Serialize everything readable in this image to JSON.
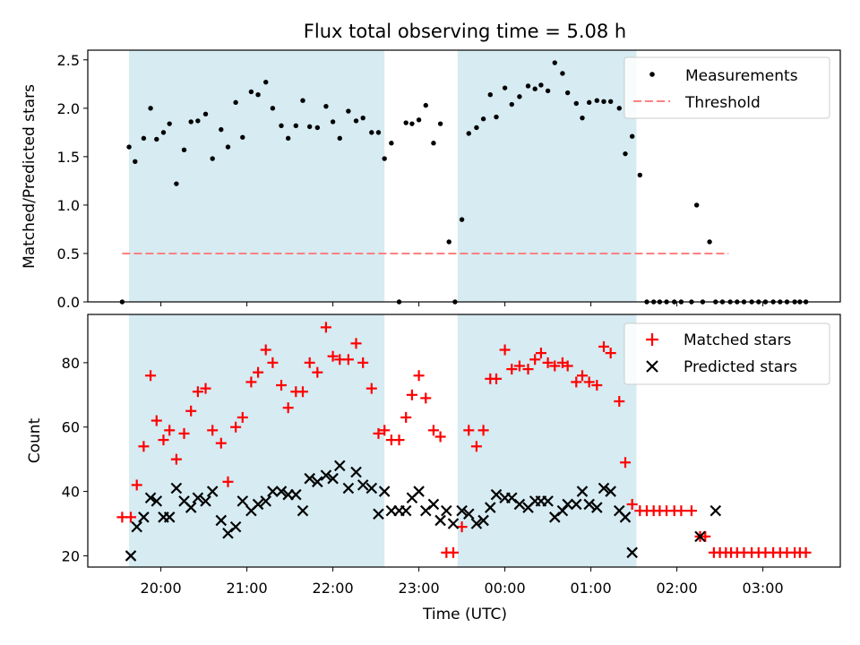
{
  "title": "Flux total observing time = 5.08 h",
  "colors": {
    "span": "#add8e6",
    "measurement": "#000000",
    "threshold": "#ff8080",
    "matched": "#ff0000",
    "predicted": "#000000"
  },
  "chart_data": [
    {
      "type": "scatter",
      "ylabel": "Matched/Predicted stars",
      "ylim": [
        0,
        2.6
      ],
      "yticks": [
        "0.0",
        "0.5",
        "1.0",
        "1.5",
        "2.0",
        "2.5"
      ],
      "legend": {
        "placement": "top-right",
        "entries": [
          "Measurements",
          "Threshold"
        ]
      },
      "threshold": 0.5,
      "threshold_x": [
        19.55,
        26.6
      ],
      "series": [
        {
          "name": "Measurements",
          "x": [
            19.55,
            19.63,
            19.7,
            19.8,
            19.88,
            19.95,
            20.03,
            20.1,
            20.18,
            20.27,
            20.35,
            20.43,
            20.52,
            20.6,
            20.7,
            20.78,
            20.87,
            20.95,
            21.05,
            21.13,
            21.22,
            21.3,
            21.4,
            21.48,
            21.57,
            21.65,
            21.73,
            21.82,
            21.92,
            22.0,
            22.08,
            22.18,
            22.27,
            22.35,
            22.45,
            22.53,
            22.6,
            22.68,
            22.77,
            22.85,
            22.92,
            23.0,
            23.08,
            23.17,
            23.25,
            23.35,
            23.42,
            23.5,
            23.58,
            23.67,
            23.75,
            23.83,
            23.9,
            24.0,
            24.08,
            24.17,
            24.27,
            24.35,
            24.42,
            24.5,
            24.58,
            24.67,
            24.73,
            24.83,
            24.9,
            24.98,
            25.07,
            25.15,
            25.23,
            25.33,
            25.4,
            25.48,
            25.57,
            25.65,
            25.73,
            25.8,
            25.88,
            25.97,
            26.05,
            26.17,
            26.23,
            26.3,
            26.38,
            26.45,
            26.53,
            26.62,
            26.7,
            26.78,
            26.87,
            26.95,
            27.03,
            27.12,
            27.2,
            27.28,
            27.37,
            27.43,
            27.5
          ],
          "y": [
            0.0,
            1.6,
            1.45,
            1.69,
            2.0,
            1.68,
            1.75,
            1.84,
            1.22,
            1.57,
            1.86,
            1.87,
            1.94,
            1.48,
            1.78,
            1.6,
            2.06,
            1.7,
            2.17,
            2.14,
            2.27,
            2.0,
            1.82,
            1.69,
            1.82,
            2.08,
            1.81,
            1.8,
            2.02,
            1.86,
            1.69,
            1.97,
            1.87,
            1.9,
            1.75,
            1.75,
            1.48,
            1.64,
            0.0,
            1.85,
            1.84,
            1.88,
            2.03,
            1.64,
            1.84,
            0.62,
            0.0,
            0.85,
            1.74,
            1.8,
            1.89,
            2.14,
            1.91,
            2.21,
            2.04,
            2.12,
            2.23,
            2.2,
            2.24,
            2.18,
            2.47,
            2.36,
            2.16,
            2.05,
            1.9,
            2.06,
            2.08,
            2.07,
            2.07,
            2.0,
            1.53,
            1.71,
            1.31,
            0.0,
            0.0,
            0.0,
            0.0,
            0.0,
            0.0,
            0.0,
            1.0,
            0.0,
            0.62,
            0.0,
            0.0,
            0.0,
            0.0,
            0.0,
            0.0,
            0.0,
            0.0,
            0.0,
            0.0,
            0.0,
            0.0,
            0.0,
            0.0
          ]
        }
      ]
    },
    {
      "type": "scatter",
      "xlabel": "Time (UTC)",
      "ylabel": "Count",
      "ylim": [
        16.5,
        95
      ],
      "yticks": [
        "20",
        "40",
        "60",
        "80"
      ],
      "xticks": [
        "20:00",
        "21:00",
        "22:00",
        "23:00",
        "00:00",
        "01:00",
        "02:00",
        "03:00"
      ],
      "legend": {
        "placement": "top-right",
        "entries": [
          "Matched stars",
          "Predicted stars"
        ]
      },
      "series": [
        {
          "name": "Matched stars",
          "x": [
            19.55,
            19.65,
            19.72,
            19.8,
            19.88,
            19.95,
            20.03,
            20.1,
            20.18,
            20.27,
            20.35,
            20.43,
            20.52,
            20.6,
            20.7,
            20.78,
            20.87,
            20.95,
            21.05,
            21.13,
            21.22,
            21.3,
            21.4,
            21.48,
            21.57,
            21.65,
            21.73,
            21.82,
            21.92,
            22.0,
            22.08,
            22.18,
            22.27,
            22.35,
            22.45,
            22.53,
            22.6,
            22.68,
            22.77,
            22.85,
            22.92,
            23.0,
            23.08,
            23.17,
            23.25,
            23.32,
            23.4,
            23.5,
            23.58,
            23.67,
            23.75,
            23.83,
            23.9,
            24.0,
            24.08,
            24.17,
            24.27,
            24.35,
            24.42,
            24.5,
            24.58,
            24.67,
            24.73,
            24.83,
            24.9,
            24.98,
            25.07,
            25.15,
            25.23,
            25.33,
            25.4,
            25.48,
            25.57,
            25.65,
            25.73,
            25.8,
            25.88,
            25.97,
            26.05,
            26.17,
            26.27,
            26.33,
            26.43,
            26.5,
            26.57,
            26.63,
            26.7,
            26.78,
            26.87,
            26.95,
            27.03,
            27.12,
            27.2,
            27.28,
            27.37,
            27.43,
            27.5
          ],
          "y": [
            32,
            32,
            42,
            54,
            76,
            62,
            56,
            59,
            50,
            58,
            65,
            71,
            72,
            59,
            55,
            43,
            60,
            63,
            74,
            77,
            84,
            80,
            73,
            66,
            71,
            71,
            80,
            77,
            91,
            82,
            81,
            81,
            86,
            80,
            72,
            58,
            59,
            56,
            56,
            63,
            70,
            76,
            69,
            59,
            57,
            21,
            21,
            29,
            59,
            54,
            59,
            75,
            75,
            84,
            78,
            79,
            78,
            81,
            83,
            80,
            79,
            80,
            79,
            74,
            76,
            74,
            73,
            85,
            83,
            68,
            49,
            36,
            34,
            34,
            34,
            34,
            34,
            34,
            34,
            34,
            26,
            26,
            21,
            21,
            21,
            21,
            21,
            21,
            21,
            21,
            21,
            21,
            21,
            21,
            21,
            21,
            21
          ]
        },
        {
          "name": "Predicted stars",
          "x": [
            19.65,
            19.72,
            19.8,
            19.88,
            19.95,
            20.03,
            20.1,
            20.18,
            20.27,
            20.35,
            20.43,
            20.52,
            20.6,
            20.7,
            20.78,
            20.87,
            20.95,
            21.05,
            21.13,
            21.22,
            21.3,
            21.4,
            21.48,
            21.57,
            21.65,
            21.73,
            21.82,
            21.92,
            22.0,
            22.08,
            22.18,
            22.27,
            22.35,
            22.45,
            22.53,
            22.6,
            22.68,
            22.77,
            22.85,
            22.92,
            23.0,
            23.08,
            23.17,
            23.25,
            23.32,
            23.4,
            23.5,
            23.58,
            23.67,
            23.75,
            23.83,
            23.9,
            24.0,
            24.08,
            24.17,
            24.27,
            24.35,
            24.42,
            24.5,
            24.58,
            24.67,
            24.73,
            24.83,
            24.9,
            24.98,
            25.07,
            25.15,
            25.23,
            25.33,
            25.4,
            25.48,
            26.27,
            26.45
          ],
          "y": [
            20,
            29,
            32,
            38,
            37,
            32,
            32,
            41,
            37,
            35,
            38,
            37,
            40,
            31,
            27,
            29,
            37,
            34,
            36,
            37,
            40,
            40,
            39,
            39,
            34,
            44,
            43,
            45,
            44,
            48,
            41,
            46,
            42,
            41,
            33,
            40,
            34,
            34,
            34,
            38,
            40,
            34,
            36,
            31,
            34,
            30,
            34,
            33,
            30,
            31,
            35,
            39,
            38,
            38,
            36,
            35,
            37,
            37,
            37,
            32,
            34,
            36,
            36,
            40,
            36,
            35,
            41,
            40,
            34,
            32,
            21,
            26,
            34
          ]
        }
      ]
    }
  ],
  "spans": [
    [
      19.63,
      22.6
    ],
    [
      23.45,
      25.53
    ]
  ],
  "xlim": [
    19.15,
    27.9
  ]
}
